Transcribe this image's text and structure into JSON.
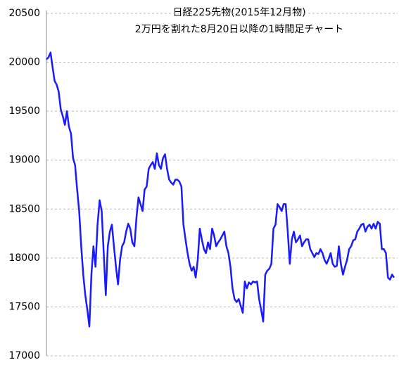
{
  "chart_data": {
    "type": "line",
    "title": "日経225先物(2015年12月物)",
    "subtitle": "2万円を割れた8月20日以降の1時間足チャート",
    "color": "#1a1aff",
    "values": [
      20030,
      20050,
      20100,
      19950,
      19810,
      19770,
      19700,
      19520,
      19450,
      19360,
      19500,
      19340,
      19270,
      19020,
      18950,
      18700,
      18480,
      18120,
      17830,
      17620,
      17470,
      17300,
      17830,
      18120,
      17910,
      18340,
      18590,
      18480,
      18050,
      17620,
      18120,
      18270,
      18340,
      18120,
      17910,
      17730,
      17980,
      18120,
      18160,
      18270,
      18350,
      18300,
      18160,
      18120,
      18410,
      18620,
      18550,
      18480,
      18700,
      18730,
      18910,
      18950,
      18980,
      18910,
      19070,
      18950,
      18910,
      19020,
      19060,
      18910,
      18800,
      18770,
      18750,
      18800,
      18800,
      18780,
      18730,
      18340,
      18190,
      18050,
      17940,
      17870,
      17910,
      17800,
      17980,
      18300,
      18190,
      18090,
      18050,
      18160,
      18090,
      18300,
      18230,
      18120,
      18160,
      18190,
      18230,
      18270,
      18120,
      18050,
      17910,
      17690,
      17580,
      17550,
      17580,
      17510,
      17440,
      17760,
      17690,
      17750,
      17730,
      17760,
      17750,
      17760,
      17580,
      17470,
      17350,
      17830,
      17870,
      17890,
      17940,
      18300,
      18340,
      18550,
      18520,
      18480,
      18550,
      18550,
      18270,
      17940,
      18190,
      18270,
      18160,
      18190,
      18230,
      18120,
      18160,
      18190,
      18190,
      18090,
      18050,
      18010,
      18050,
      18040,
      18090,
      18050,
      17980,
      17940,
      17990,
      18050,
      17940,
      17910,
      17920,
      18120,
      17940,
      17830,
      17910,
      17980,
      18090,
      18120,
      18180,
      18190,
      18270,
      18300,
      18340,
      18350,
      18270,
      18320,
      18340,
      18300,
      18350,
      18300,
      18370,
      18350,
      18090,
      18090,
      18050,
      17800,
      17780,
      17830,
      17800
    ],
    "ylim": [
      17000,
      20500
    ],
    "yticks": [
      17000,
      17500,
      18000,
      18500,
      19000,
      19500,
      20000,
      20500
    ],
    "grid": true
  }
}
